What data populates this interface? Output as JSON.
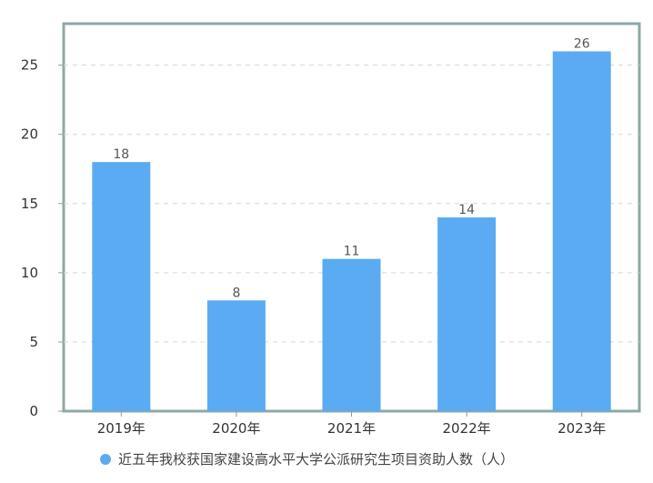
{
  "chart_data": {
    "type": "bar",
    "categories": [
      "2019年",
      "2020年",
      "2021年",
      "2022年",
      "2023年"
    ],
    "series": [
      {
        "name": "近五年我校获国家建设高水平大学公派研究生项目资助人数（人）",
        "values": [
          18,
          8,
          11,
          14,
          26
        ]
      }
    ],
    "ylim": [
      0,
      28
    ],
    "yticks": [
      0,
      5,
      10,
      15,
      20,
      25
    ],
    "grid": true,
    "legend_position": "bottom-center",
    "colors": {
      "bar": "#5aabf2",
      "frame": "#8ea8a6",
      "grid": "#d6d6d6"
    }
  }
}
